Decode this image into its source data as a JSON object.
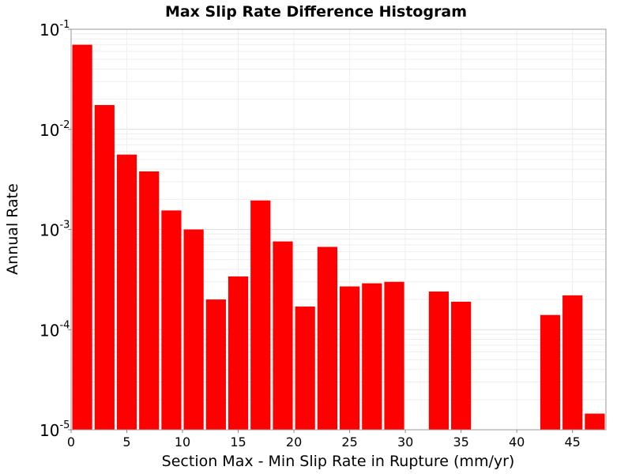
{
  "chart_data": {
    "type": "bar",
    "title": "Max Slip Rate Difference Histogram",
    "xlabel": "Section Max - Min Slip Rate in Rupture (mm/yr)",
    "ylabel": "Annual Rate",
    "xlim": [
      0,
      48
    ],
    "ylim": [
      1e-05,
      0.1
    ],
    "yscale": "log",
    "bin_width": 2,
    "x_ticks": [
      0,
      5,
      10,
      15,
      20,
      25,
      30,
      35,
      40,
      45
    ],
    "y_ticks": [
      {
        "value": 0.1,
        "base": "10",
        "exp": "-1"
      },
      {
        "value": 0.01,
        "base": "10",
        "exp": "-2"
      },
      {
        "value": 0.001,
        "base": "10",
        "exp": "-3"
      },
      {
        "value": 0.0001,
        "base": "10",
        "exp": "-4"
      },
      {
        "value": 1e-05,
        "base": "10",
        "exp": "-5"
      }
    ],
    "grid": true,
    "bar_color": "#ff0000",
    "bars": [
      {
        "x0": 0,
        "x1": 2,
        "value": 0.07
      },
      {
        "x0": 2,
        "x1": 4,
        "value": 0.0175
      },
      {
        "x0": 4,
        "x1": 6,
        "value": 0.0056
      },
      {
        "x0": 6,
        "x1": 8,
        "value": 0.0038
      },
      {
        "x0": 8,
        "x1": 10,
        "value": 0.00155
      },
      {
        "x0": 10,
        "x1": 12,
        "value": 0.001
      },
      {
        "x0": 12,
        "x1": 14,
        "value": 0.0002
      },
      {
        "x0": 14,
        "x1": 16,
        "value": 0.00034
      },
      {
        "x0": 16,
        "x1": 18,
        "value": 0.00195
      },
      {
        "x0": 18,
        "x1": 20,
        "value": 0.00076
      },
      {
        "x0": 20,
        "x1": 22,
        "value": 0.00017
      },
      {
        "x0": 22,
        "x1": 24,
        "value": 0.00067
      },
      {
        "x0": 24,
        "x1": 26,
        "value": 0.00027
      },
      {
        "x0": 26,
        "x1": 28,
        "value": 0.00029
      },
      {
        "x0": 28,
        "x1": 30,
        "value": 0.0003
      },
      {
        "x0": 32,
        "x1": 34,
        "value": 0.00024
      },
      {
        "x0": 34,
        "x1": 36,
        "value": 0.00019
      },
      {
        "x0": 42,
        "x1": 44,
        "value": 0.00014
      },
      {
        "x0": 44,
        "x1": 46,
        "value": 0.00022
      },
      {
        "x0": 46,
        "x1": 48,
        "value": 1.45e-05
      }
    ]
  }
}
